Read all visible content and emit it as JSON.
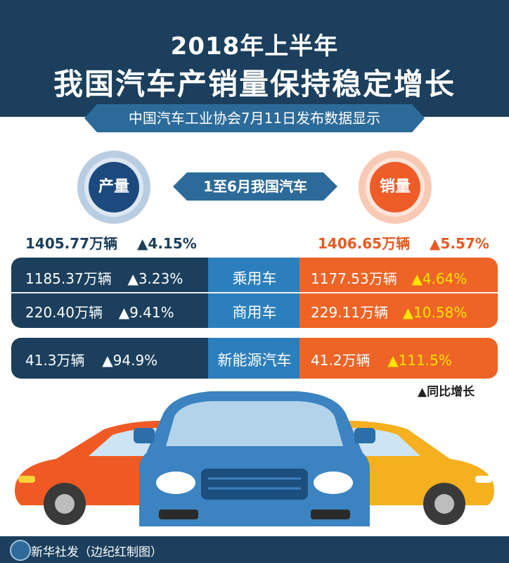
{
  "header": {
    "title_line1": "2018年上半年",
    "title_line2": "我国汽车产销量保持稳定增长",
    "subtitle": "中国汽车工业协会7月11日发布数据显示"
  },
  "center_label": "1至6月我国汽车",
  "production": {
    "label": "产量",
    "total": "1405.77万辆",
    "total_growth": "▲4.15%"
  },
  "sales": {
    "label": "销量",
    "total": "1406.65万辆",
    "total_growth": "▲5.57%"
  },
  "rows": [
    {
      "category": "乘用车",
      "prod_value": "1185.37万辆",
      "prod_growth": "▲3.23%",
      "sales_value": "1177.53万辆",
      "sales_growth": "▲4.64%"
    },
    {
      "category": "商用车",
      "prod_value": "220.40万辆",
      "prod_growth": "▲9.41%",
      "sales_value": "229.11万辆",
      "sales_growth": "▲10.58%"
    },
    {
      "category": "新能源汽车",
      "prod_value": "41.3万辆",
      "prod_growth": "▲94.9%",
      "sales_value": "41.2万辆",
      "sales_growth": "▲111.5%"
    }
  ],
  "legend": "▲同比增长",
  "footer": "新华社发（边纪红制图）",
  "colors": {
    "navy": "#1b3f5c",
    "blue": "#2c7fbd",
    "orange": "#ee6426",
    "yellow": "#ffe400"
  }
}
